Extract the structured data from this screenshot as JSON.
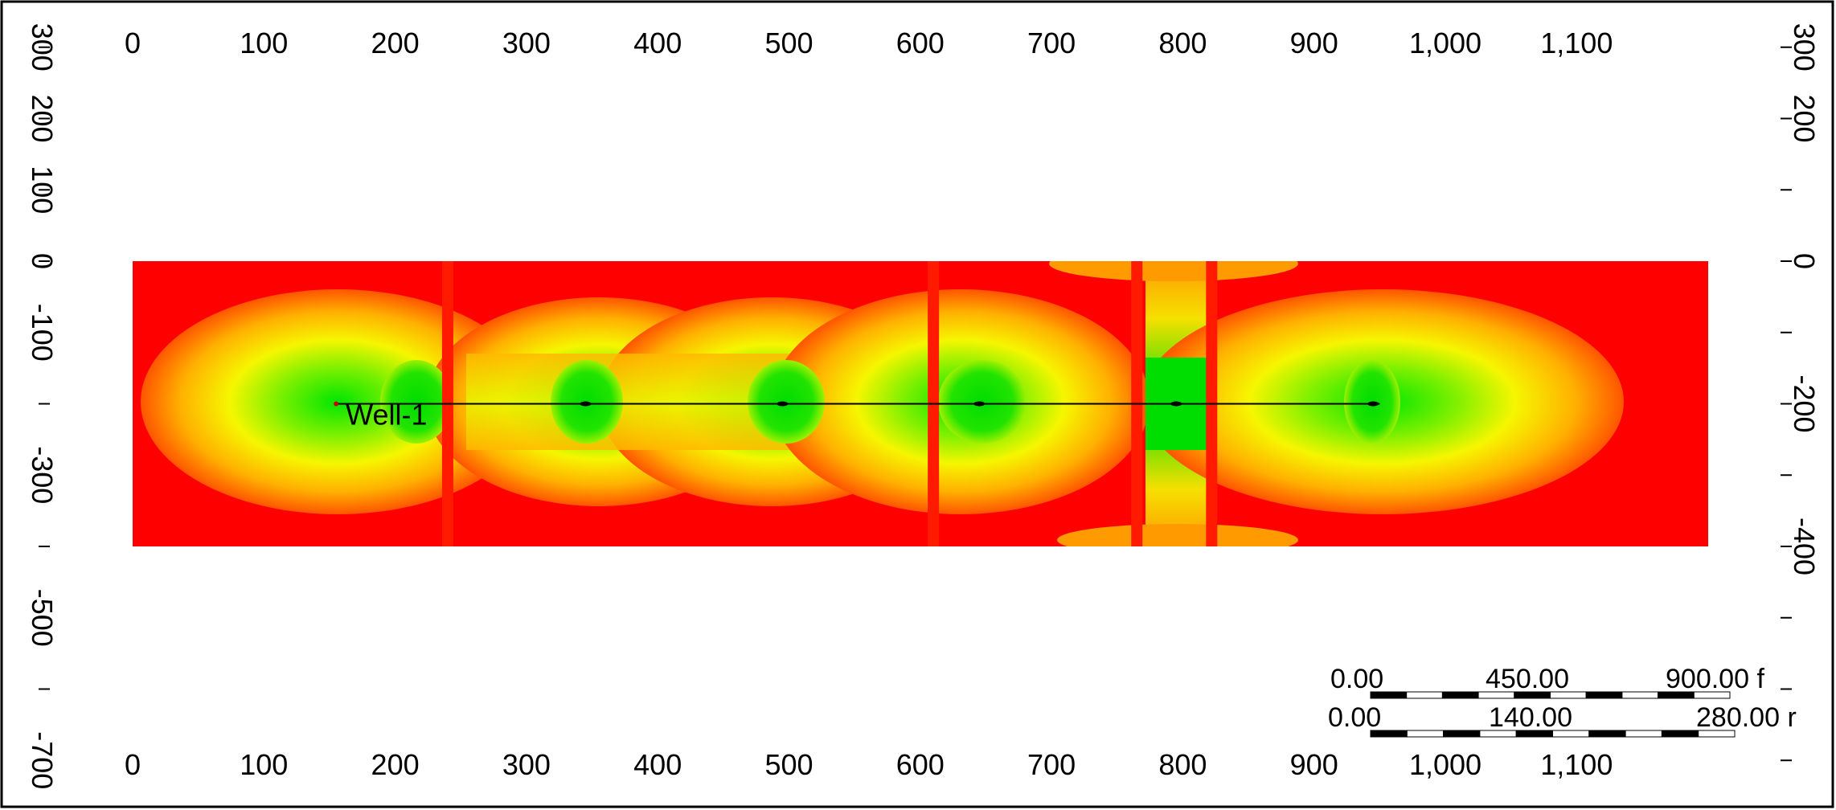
{
  "map": {
    "x_axis": {
      "ticks": [
        0,
        100,
        200,
        300,
        400,
        500,
        600,
        700,
        800,
        900,
        1000,
        1100
      ],
      "tick_labels": [
        "0",
        "100",
        "200",
        "300",
        "400",
        "500",
        "600",
        "700",
        "800",
        "900",
        "1,000",
        "1,100"
      ]
    },
    "y_axis": {
      "left_ticks": [
        300,
        200,
        100,
        0,
        -100,
        -200,
        -300,
        -400,
        -500,
        -600,
        -700
      ],
      "left_labels": [
        "300",
        "200",
        "100",
        "0",
        "-100",
        "",
        "-300",
        "",
        "-500",
        "",
        "-700"
      ],
      "right_ticks": [
        300,
        200,
        100,
        0,
        -100,
        -200,
        -300,
        -400,
        -500,
        -600,
        -700
      ],
      "right_labels": [
        "300",
        "200",
        "",
        "0",
        "",
        "-200",
        "",
        "-400",
        "",
        "",
        ""
      ]
    },
    "grid_extent": {
      "x_min": 0,
      "x_max": 1200,
      "y_min": -400,
      "y_max": 0
    },
    "well": {
      "label": "Well-1",
      "trajectory": {
        "x_start": 155,
        "x_end": 950,
        "y": -200
      },
      "perforation_x": [
        345,
        495,
        645,
        795,
        945
      ]
    },
    "faults_x": [
      240,
      610,
      765,
      822
    ],
    "scale_bars": [
      {
        "labels": [
          "0.00",
          "450.00",
          "900.00 f"
        ]
      },
      {
        "labels": [
          "0.00",
          "140.00",
          "280.00 r"
        ]
      }
    ],
    "colors": {
      "background": "#ffffff",
      "high": "#00ee00",
      "mid": "#f6f600",
      "low": "#ff9900",
      "min": "#ff0000"
    }
  }
}
